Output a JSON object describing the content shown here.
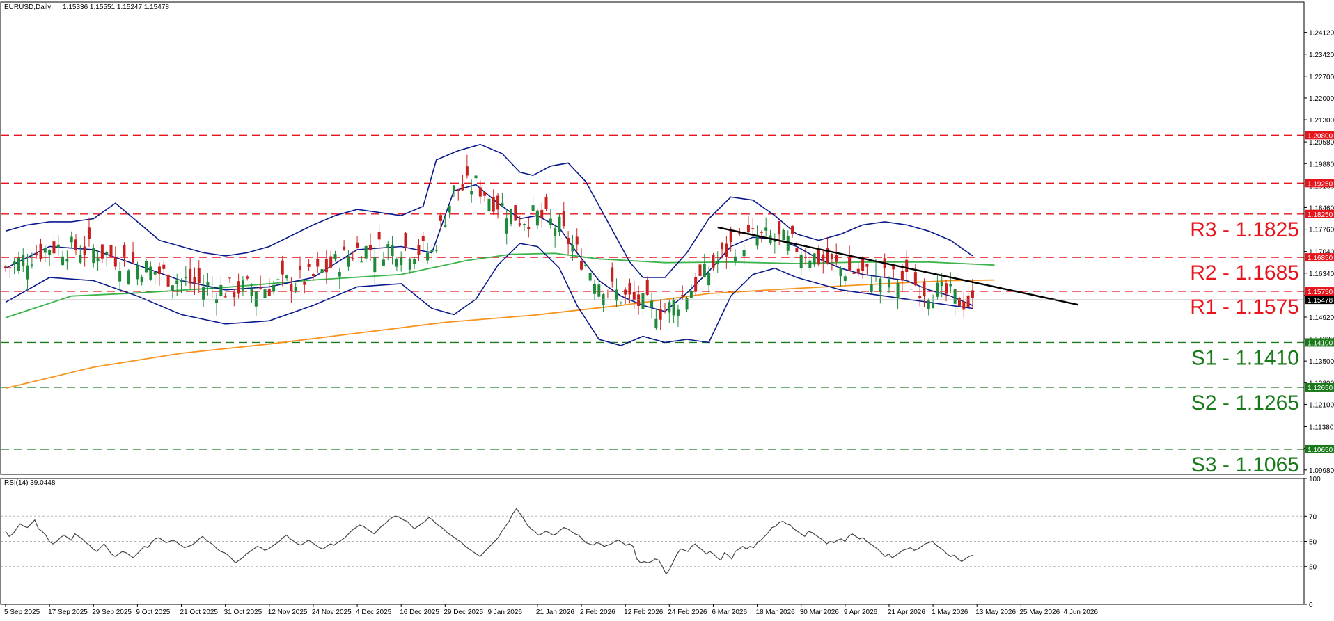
{
  "header": {
    "symbol": "EURUSD,Daily",
    "ohlc": "1.15336 1.15551 1.15247 1.15478"
  },
  "rsi_header": "RSI(14) 39.0448",
  "chart_data": [
    {
      "type": "candlestick",
      "title": "",
      "ylim": [
        1.0984,
        1.251
      ],
      "yticks": [
        "1.24120",
        "1.23420",
        "1.22700",
        "1.22000",
        "1.21300",
        "1.20580",
        "1.19880",
        "1.19160",
        "1.18460",
        "1.17760",
        "1.17040",
        "1.16340",
        "1.15620",
        "1.14920",
        "1.14220",
        "1.13500",
        "1.12800",
        "1.12100",
        "1.11380",
        "1.10680",
        "1.09980"
      ],
      "xtick_labels": [
        "5 Sep 2025",
        "17 Sep 2025",
        "29 Sep 2025",
        "9 Oct 2025",
        "21 Oct 2025",
        "31 Oct 2025",
        "12 Nov 2025",
        "24 Nov 2025",
        "4 Dec 2025",
        "16 Dec 2025",
        "29 Dec 2025",
        "9 Jan 2026",
        "21 Jan 2026",
        "2 Feb 2026",
        "12 Feb 2026",
        "24 Feb 2026",
        "6 Mar 2026",
        "18 Mar 2026",
        "30 Mar 2026",
        "9 Apr 2026",
        "21 Apr 2026",
        "1 May 2026",
        "13 May 2026",
        "25 May 2026",
        "4 Jun 2026"
      ],
      "current_price": {
        "value": 1.15478,
        "label": "1.15478",
        "color": "#000000"
      },
      "levels": [
        {
          "value": 1.208,
          "tag": "1.20800",
          "text": "",
          "color": "#e8141c"
        },
        {
          "value": 1.1925,
          "tag": "1.19250",
          "text": "",
          "color": "#e8141c"
        },
        {
          "value": 1.1825,
          "tag": "1.18250",
          "text": "R3 - 1.1825",
          "color": "#e8141c"
        },
        {
          "value": 1.1685,
          "tag": "1.16850",
          "text": "R2 - 1.1685",
          "color": "#e8141c"
        },
        {
          "value": 1.1575,
          "tag": "1.15750",
          "text": "R1 - 1.1575",
          "color": "#e8141c"
        },
        {
          "value": 1.141,
          "tag": "1.14100",
          "text": "S1 - 1.1410",
          "color": "#1a7a1a"
        },
        {
          "value": 1.1265,
          "tag": "1.12650",
          "text": "S2 - 1.1265",
          "color": "#1a7a1a"
        },
        {
          "value": 1.1065,
          "tag": "1.10650",
          "text": "S3 - 1.1065",
          "color": "#1a7a1a"
        }
      ],
      "candle_colors": {
        "up": "#1e8a3a",
        "down": "#c8201e"
      },
      "trendline": {
        "from": [
          162,
          1.1782
        ],
        "to": [
          244,
          1.1532
        ],
        "color": "#000000"
      },
      "series": [
        {
          "kind": "ma",
          "color": "#f7931e",
          "points": [
            [
              0,
              1.1262
            ],
            [
              20,
              1.133
            ],
            [
              40,
              1.1375
            ],
            [
              60,
              1.1405
            ],
            [
              80,
              1.144
            ],
            [
              100,
              1.1475
            ],
            [
              120,
              1.1498
            ],
            [
              140,
              1.153
            ],
            [
              160,
              1.1568
            ],
            [
              180,
              1.1585
            ],
            [
              200,
              1.16
            ],
            [
              215,
              1.161
            ],
            [
              225,
              1.1612
            ]
          ]
        },
        {
          "kind": "ma",
          "color": "#3cb44b",
          "points": [
            [
              0,
              1.149
            ],
            [
              15,
              1.156
            ],
            [
              30,
              1.157
            ],
            [
              50,
              1.1588
            ],
            [
              70,
              1.1612
            ],
            [
              90,
              1.163
            ],
            [
              105,
              1.1675
            ],
            [
              115,
              1.1695
            ],
            [
              125,
              1.1698
            ],
            [
              135,
              1.168
            ],
            [
              150,
              1.1668
            ],
            [
              165,
              1.167
            ],
            [
              180,
              1.1665
            ],
            [
              195,
              1.167
            ],
            [
              210,
              1.167
            ],
            [
              225,
              1.166
            ]
          ]
        },
        {
          "kind": "band",
          "color": "#0a1a8c",
          "points": [
            [
              0,
              1.177
            ],
            [
              5,
              1.179
            ],
            [
              10,
              1.18
            ],
            [
              15,
              1.18
            ],
            [
              20,
              1.181
            ],
            [
              25,
              1.186
            ],
            [
              30,
              1.18
            ],
            [
              35,
              1.174
            ],
            [
              40,
              1.172
            ],
            [
              45,
              1.17
            ],
            [
              50,
              1.169
            ],
            [
              55,
              1.17
            ],
            [
              60,
              1.172
            ],
            [
              65,
              1.1755
            ],
            [
              70,
              1.179
            ],
            [
              75,
              1.182
            ],
            [
              80,
              1.184
            ],
            [
              85,
              1.183
            ],
            [
              90,
              1.182
            ],
            [
              95,
              1.185
            ],
            [
              98,
              1.2
            ],
            [
              103,
              1.203
            ],
            [
              108,
              1.205
            ],
            [
              113,
              1.202
            ],
            [
              117,
              1.196
            ],
            [
              120,
              1.195
            ],
            [
              124,
              1.198
            ],
            [
              128,
              1.199
            ],
            [
              132,
              1.193
            ],
            [
              137,
              1.18
            ],
            [
              142,
              1.167
            ],
            [
              145,
              1.162
            ],
            [
              150,
              1.162
            ],
            [
              155,
              1.17
            ],
            [
              160,
              1.181
            ],
            [
              165,
              1.188
            ],
            [
              170,
              1.187
            ],
            [
              175,
              1.182
            ],
            [
              180,
              1.176
            ],
            [
              185,
              1.174
            ],
            [
              190,
              1.176
            ],
            [
              195,
              1.179
            ],
            [
              200,
              1.18
            ],
            [
              205,
              1.179
            ],
            [
              210,
              1.177
            ],
            [
              215,
              1.174
            ],
            [
              220,
              1.169
            ]
          ]
        },
        {
          "kind": "band",
          "color": "#0a1a8c",
          "points": [
            [
              0,
              1.165
            ],
            [
              10,
              1.172
            ],
            [
              20,
              1.171
            ],
            [
              30,
              1.166
            ],
            [
              40,
              1.161
            ],
            [
              50,
              1.158
            ],
            [
              60,
              1.159
            ],
            [
              70,
              1.162
            ],
            [
              80,
              1.171
            ],
            [
              90,
              1.172
            ],
            [
              97,
              1.17
            ],
            [
              102,
              1.19
            ],
            [
              107,
              1.192
            ],
            [
              112,
              1.186
            ],
            [
              117,
              1.181
            ],
            [
              121,
              1.182
            ],
            [
              126,
              1.178
            ],
            [
              130,
              1.17
            ],
            [
              135,
              1.161
            ],
            [
              140,
              1.156
            ],
            [
              145,
              1.153
            ],
            [
              150,
              1.151
            ],
            [
              155,
              1.157
            ],
            [
              160,
              1.164
            ],
            [
              165,
              1.172
            ],
            [
              170,
              1.175
            ],
            [
              175,
              1.1745
            ],
            [
              180,
              1.172
            ],
            [
              185,
              1.168
            ],
            [
              190,
              1.165
            ],
            [
              195,
              1.163
            ],
            [
              200,
              1.162
            ],
            [
              205,
              1.161
            ],
            [
              210,
              1.158
            ],
            [
              215,
              1.156
            ],
            [
              220,
              1.153
            ]
          ]
        },
        {
          "kind": "band",
          "color": "#0a1a8c",
          "points": [
            [
              0,
              1.154
            ],
            [
              10,
              1.162
            ],
            [
              20,
              1.161
            ],
            [
              30,
              1.156
            ],
            [
              40,
              1.15
            ],
            [
              50,
              1.147
            ],
            [
              60,
              1.148
            ],
            [
              70,
              1.153
            ],
            [
              80,
              1.159
            ],
            [
              90,
              1.16
            ],
            [
              97,
              1.152
            ],
            [
              102,
              1.15
            ],
            [
              107,
              1.155
            ],
            [
              112,
              1.166
            ],
            [
              117,
              1.173
            ],
            [
              121,
              1.172
            ],
            [
              126,
              1.165
            ],
            [
              130,
              1.153
            ],
            [
              135,
              1.142
            ],
            [
              140,
              1.14
            ],
            [
              145,
              1.143
            ],
            [
              150,
              1.141
            ],
            [
              155,
              1.142
            ],
            [
              160,
              1.141
            ],
            [
              165,
              1.156
            ],
            [
              170,
              1.163
            ],
            [
              175,
              1.165
            ],
            [
              180,
              1.162
            ],
            [
              185,
              1.16
            ],
            [
              190,
              1.158
            ],
            [
              195,
              1.157
            ],
            [
              200,
              1.156
            ],
            [
              205,
              1.155
            ],
            [
              210,
              1.154
            ],
            [
              215,
              1.153
            ],
            [
              220,
              1.152
            ]
          ]
        }
      ]
    },
    {
      "type": "line",
      "title": "",
      "ylim": [
        0,
        100
      ],
      "yticks": [
        "100",
        "70",
        "50",
        "30",
        "0"
      ],
      "guide_levels": [
        70,
        50,
        30
      ],
      "series": [
        {
          "color": "#444444",
          "values": [
            58,
            54,
            56,
            60,
            64,
            62,
            61,
            64,
            67,
            60,
            58,
            55,
            50,
            48,
            50,
            53,
            55,
            53,
            51,
            56,
            54,
            52,
            49,
            47,
            44,
            42,
            45,
            48,
            44,
            40,
            38,
            40,
            42,
            41,
            39,
            37,
            40,
            43,
            46,
            45,
            49,
            52,
            53,
            51,
            49,
            50,
            51,
            49,
            47,
            45,
            46,
            47,
            49,
            52,
            54,
            51,
            49,
            47,
            44,
            42,
            41,
            39,
            36,
            33,
            35,
            37,
            40,
            42,
            44,
            46,
            45,
            43,
            44,
            46,
            48,
            50,
            53,
            55,
            52,
            50,
            48,
            47,
            49,
            51,
            49,
            47,
            45,
            44,
            46,
            48,
            47,
            49,
            51,
            53,
            56,
            59,
            61,
            63,
            62,
            60,
            58,
            56,
            59,
            62,
            64,
            67,
            69,
            70,
            69,
            67,
            66,
            63,
            60,
            62,
            64,
            66,
            69,
            67,
            64,
            62,
            60,
            57,
            55,
            53,
            51,
            49,
            46,
            44,
            42,
            40,
            38,
            41,
            44,
            47,
            50,
            53,
            58,
            62,
            66,
            72,
            76,
            72,
            68,
            63,
            60,
            58,
            55,
            56,
            58,
            57,
            55,
            56,
            59,
            61,
            60,
            58,
            56,
            55,
            52,
            49,
            48,
            47,
            49,
            48,
            46,
            47,
            48,
            50,
            51,
            49,
            47,
            48,
            46,
            36,
            33,
            34,
            33,
            34,
            36,
            35,
            30,
            24,
            28,
            34,
            40,
            44,
            43,
            42,
            46,
            48,
            45,
            43,
            40,
            42,
            40,
            37,
            35,
            41,
            39,
            36,
            42,
            44,
            46,
            44,
            46,
            45,
            49,
            51,
            54,
            57,
            61,
            62,
            65,
            66,
            64,
            63,
            60,
            58,
            56,
            54,
            58,
            57,
            55,
            53,
            51,
            48,
            50,
            49,
            51,
            52,
            50,
            54,
            56,
            54,
            52,
            53,
            50,
            48,
            46,
            44,
            41,
            38,
            40,
            37,
            39,
            41,
            43,
            44,
            45,
            43,
            44,
            46,
            48,
            49,
            50,
            47,
            45,
            43,
            40,
            38,
            39,
            36,
            34,
            36,
            38,
            39
          ]
        }
      ]
    }
  ]
}
